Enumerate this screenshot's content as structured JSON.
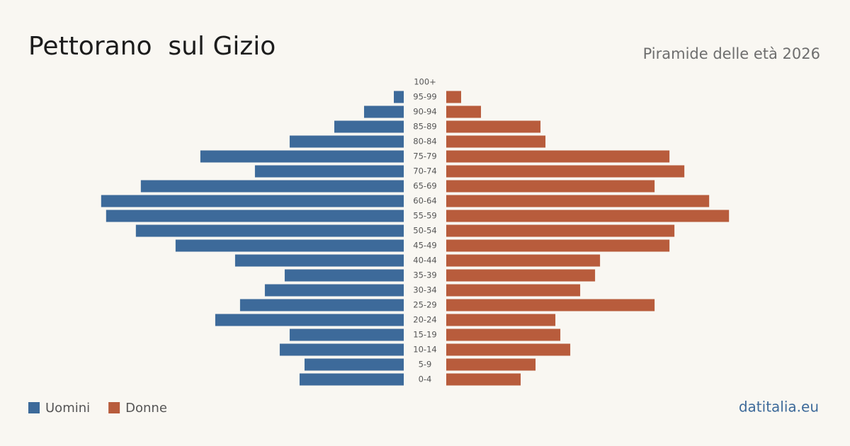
{
  "chart_data": {
    "type": "pyramid",
    "title": "Pettorano  sul Gizio",
    "subtitle": "Piramide delle età 2026",
    "source": "datitalia.eu",
    "categories": [
      "100+",
      "95-99",
      "90-94",
      "85-89",
      "80-84",
      "75-79",
      "70-74",
      "65-69",
      "60-64",
      "55-59",
      "50-54",
      "45-49",
      "40-44",
      "35-39",
      "30-34",
      "25-29",
      "20-24",
      "15-19",
      "10-14",
      "5-9",
      "0-4"
    ],
    "series": [
      {
        "name": "Uomini",
        "color": "#3d6a9a",
        "values": [
          0,
          2,
          8,
          14,
          23,
          41,
          30,
          53,
          61,
          60,
          54,
          46,
          34,
          24,
          28,
          33,
          38,
          23,
          25,
          20,
          21
        ]
      },
      {
        "name": "Donne",
        "color": "#b85c3c",
        "values": [
          0,
          3,
          7,
          19,
          20,
          45,
          48,
          42,
          53,
          57,
          46,
          45,
          31,
          30,
          27,
          42,
          22,
          23,
          25,
          18,
          15
        ]
      }
    ],
    "xlim": [
      0,
      61.4
    ]
  }
}
